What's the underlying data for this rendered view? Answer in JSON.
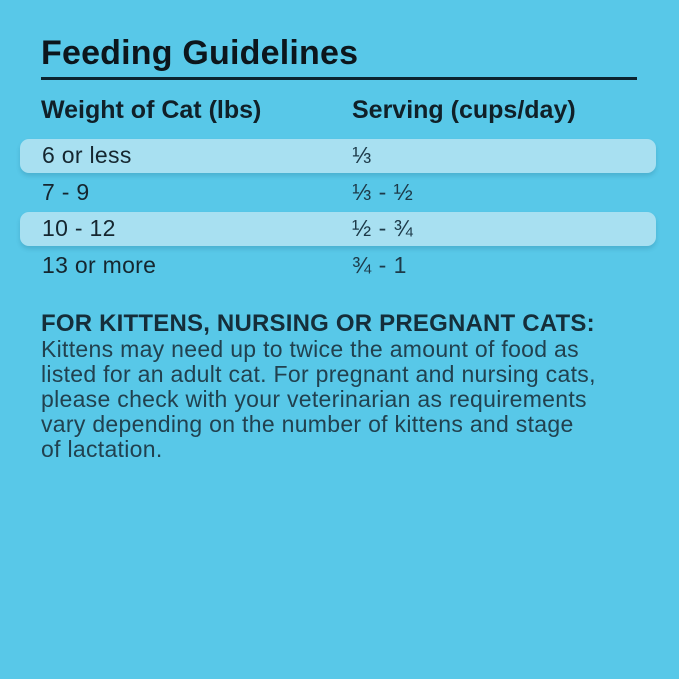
{
  "title": "Feeding Guidelines",
  "table": {
    "headers": [
      "Weight of Cat (lbs)",
      "Serving (cups/day)"
    ],
    "rows": [
      {
        "weight": "6 or less",
        "serving": "⅓",
        "highlighted": true
      },
      {
        "weight": "7 - 9",
        "serving": "⅓ - ½",
        "highlighted": false
      },
      {
        "weight": "10 - 12",
        "serving": "½ - ¾",
        "highlighted": true
      },
      {
        "weight": "13 or more",
        "serving": "¾ - 1",
        "highlighted": false
      }
    ]
  },
  "note": {
    "heading": "FOR KITTENS, NURSING OR PREGNANT CATS:",
    "lines": [
      "Kittens may need up to twice the amount of food as",
      "listed for an adult cat. For pregnant and nursing cats,",
      "please check with your veterinarian as requirements",
      "vary depending on the number of kittens and stage",
      "of lactation."
    ]
  },
  "theme": {
    "background": "#58C8E8",
    "row_highlight": "#A8E0F1",
    "title_color": "#0C161C",
    "rule_color": "#0C2430",
    "header_color": "#102028",
    "row_text_color": "#15262F",
    "serving_text_color": "#1D3A49",
    "note_heading_color": "#152E3A",
    "note_text_color": "#21414F"
  }
}
